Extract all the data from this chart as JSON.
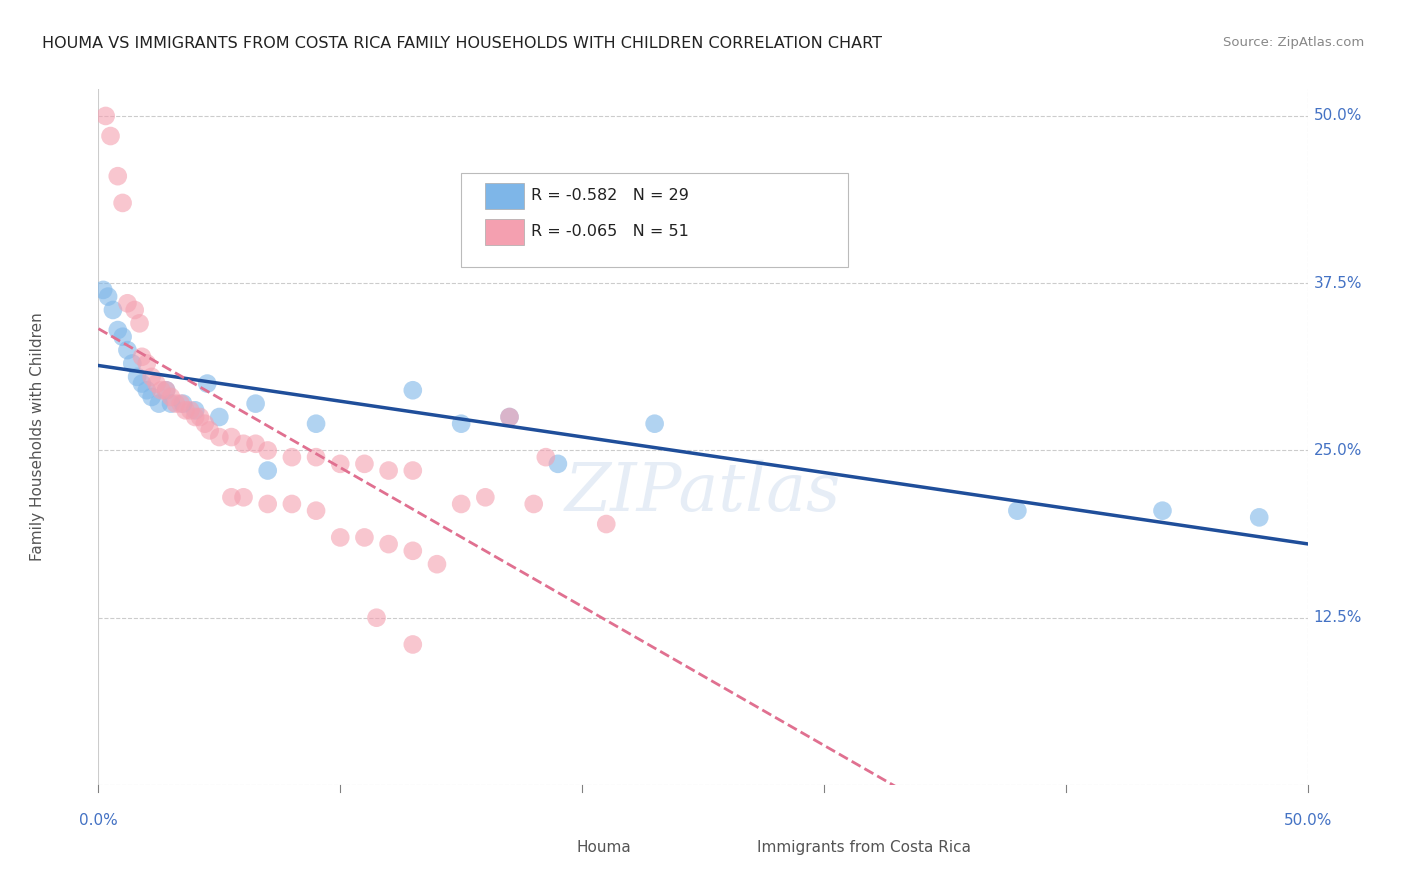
{
  "title": "HOUMA VS IMMIGRANTS FROM COSTA RICA FAMILY HOUSEHOLDS WITH CHILDREN CORRELATION CHART",
  "source": "Source: ZipAtlas.com",
  "ylabel": "Family Households with Children",
  "xlim": [
    0.0,
    0.5
  ],
  "ylim": [
    0.0,
    0.52
  ],
  "x_tick_positions": [
    0.0,
    0.1,
    0.2,
    0.3,
    0.4,
    0.5
  ],
  "y_tick_positions": [
    0.0,
    0.125,
    0.25,
    0.375,
    0.5
  ],
  "y_tick_labels": [
    "0.0%",
    "12.5%",
    "25.0%",
    "37.5%",
    "50.0%"
  ],
  "houma_color": "#7EB6E8",
  "cr_color": "#F4A0B0",
  "houma_line_color": "#1F4E9A",
  "cr_line_color": "#E07090",
  "bg_color": "#FFFFFF",
  "grid_color": "#CCCCCC",
  "legend_entries": [
    {
      "color": "#7EB6E8",
      "label": "R = -0.582   N = 29"
    },
    {
      "color": "#F4A0B0",
      "label": "R = -0.065   N = 51"
    }
  ],
  "houma_points": [
    [
      0.002,
      0.37
    ],
    [
      0.004,
      0.365
    ],
    [
      0.006,
      0.355
    ],
    [
      0.008,
      0.34
    ],
    [
      0.01,
      0.335
    ],
    [
      0.012,
      0.325
    ],
    [
      0.014,
      0.315
    ],
    [
      0.016,
      0.305
    ],
    [
      0.018,
      0.3
    ],
    [
      0.02,
      0.295
    ],
    [
      0.022,
      0.29
    ],
    [
      0.025,
      0.285
    ],
    [
      0.028,
      0.295
    ],
    [
      0.03,
      0.285
    ],
    [
      0.035,
      0.285
    ],
    [
      0.04,
      0.28
    ],
    [
      0.045,
      0.3
    ],
    [
      0.05,
      0.275
    ],
    [
      0.065,
      0.285
    ],
    [
      0.07,
      0.235
    ],
    [
      0.09,
      0.27
    ],
    [
      0.13,
      0.295
    ],
    [
      0.15,
      0.27
    ],
    [
      0.17,
      0.275
    ],
    [
      0.19,
      0.24
    ],
    [
      0.23,
      0.27
    ],
    [
      0.38,
      0.205
    ],
    [
      0.44,
      0.205
    ],
    [
      0.48,
      0.2
    ]
  ],
  "cr_points": [
    [
      0.003,
      0.5
    ],
    [
      0.005,
      0.485
    ],
    [
      0.008,
      0.455
    ],
    [
      0.01,
      0.435
    ],
    [
      0.012,
      0.36
    ],
    [
      0.015,
      0.355
    ],
    [
      0.017,
      0.345
    ],
    [
      0.018,
      0.32
    ],
    [
      0.02,
      0.315
    ],
    [
      0.022,
      0.305
    ],
    [
      0.024,
      0.3
    ],
    [
      0.026,
      0.295
    ],
    [
      0.028,
      0.295
    ],
    [
      0.03,
      0.29
    ],
    [
      0.032,
      0.285
    ],
    [
      0.034,
      0.285
    ],
    [
      0.036,
      0.28
    ],
    [
      0.038,
      0.28
    ],
    [
      0.04,
      0.275
    ],
    [
      0.042,
      0.275
    ],
    [
      0.044,
      0.27
    ],
    [
      0.046,
      0.265
    ],
    [
      0.05,
      0.26
    ],
    [
      0.055,
      0.26
    ],
    [
      0.06,
      0.255
    ],
    [
      0.065,
      0.255
    ],
    [
      0.07,
      0.25
    ],
    [
      0.08,
      0.245
    ],
    [
      0.09,
      0.245
    ],
    [
      0.1,
      0.24
    ],
    [
      0.11,
      0.24
    ],
    [
      0.12,
      0.235
    ],
    [
      0.13,
      0.235
    ],
    [
      0.15,
      0.21
    ],
    [
      0.17,
      0.275
    ],
    [
      0.185,
      0.245
    ],
    [
      0.21,
      0.195
    ],
    [
      0.055,
      0.215
    ],
    [
      0.06,
      0.215
    ],
    [
      0.07,
      0.21
    ],
    [
      0.08,
      0.21
    ],
    [
      0.09,
      0.205
    ],
    [
      0.1,
      0.185
    ],
    [
      0.11,
      0.185
    ],
    [
      0.12,
      0.18
    ],
    [
      0.13,
      0.175
    ],
    [
      0.14,
      0.165
    ],
    [
      0.115,
      0.125
    ],
    [
      0.13,
      0.105
    ],
    [
      0.16,
      0.215
    ],
    [
      0.18,
      0.21
    ]
  ]
}
